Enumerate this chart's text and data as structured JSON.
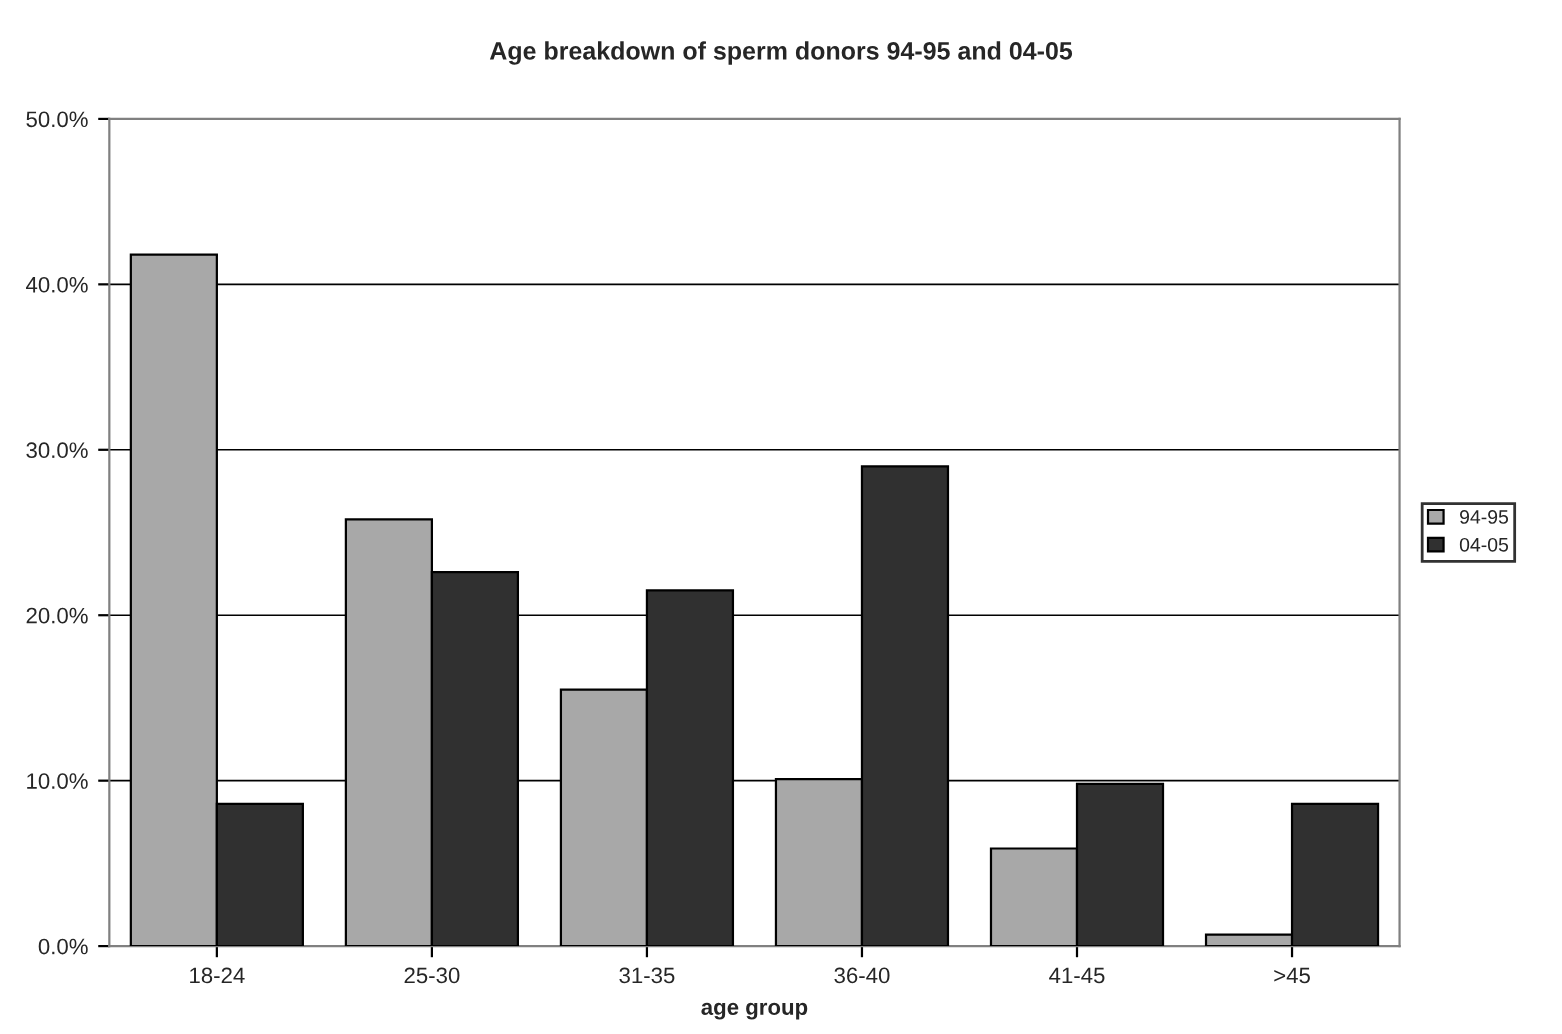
{
  "chart_data": {
    "type": "bar",
    "title": "Age breakdown of sperm donors 94-95 and 04-05",
    "xlabel": "age group",
    "categories": [
      "18-24",
      "25-30",
      "31-35",
      "36-40",
      "41-45",
      ">45"
    ],
    "series": [
      {
        "name": "94-95",
        "color": "#a8a8a8",
        "values": [
          41.8,
          25.8,
          15.5,
          10.1,
          5.9,
          0.7
        ]
      },
      {
        "name": "04-05",
        "color": "#303030",
        "values": [
          8.6,
          22.6,
          21.5,
          29.0,
          9.8,
          8.6
        ]
      }
    ],
    "ylim": [
      0,
      50
    ],
    "yticks": [
      {
        "value": 0,
        "label": "0.0%"
      },
      {
        "value": 10,
        "label": "10.0%"
      },
      {
        "value": 20,
        "label": "20.0%"
      },
      {
        "value": 30,
        "label": "30.0%"
      },
      {
        "value": 40,
        "label": "40.0%"
      },
      {
        "value": 50,
        "label": "50.0%"
      }
    ],
    "grid": "y",
    "legend": "right"
  }
}
